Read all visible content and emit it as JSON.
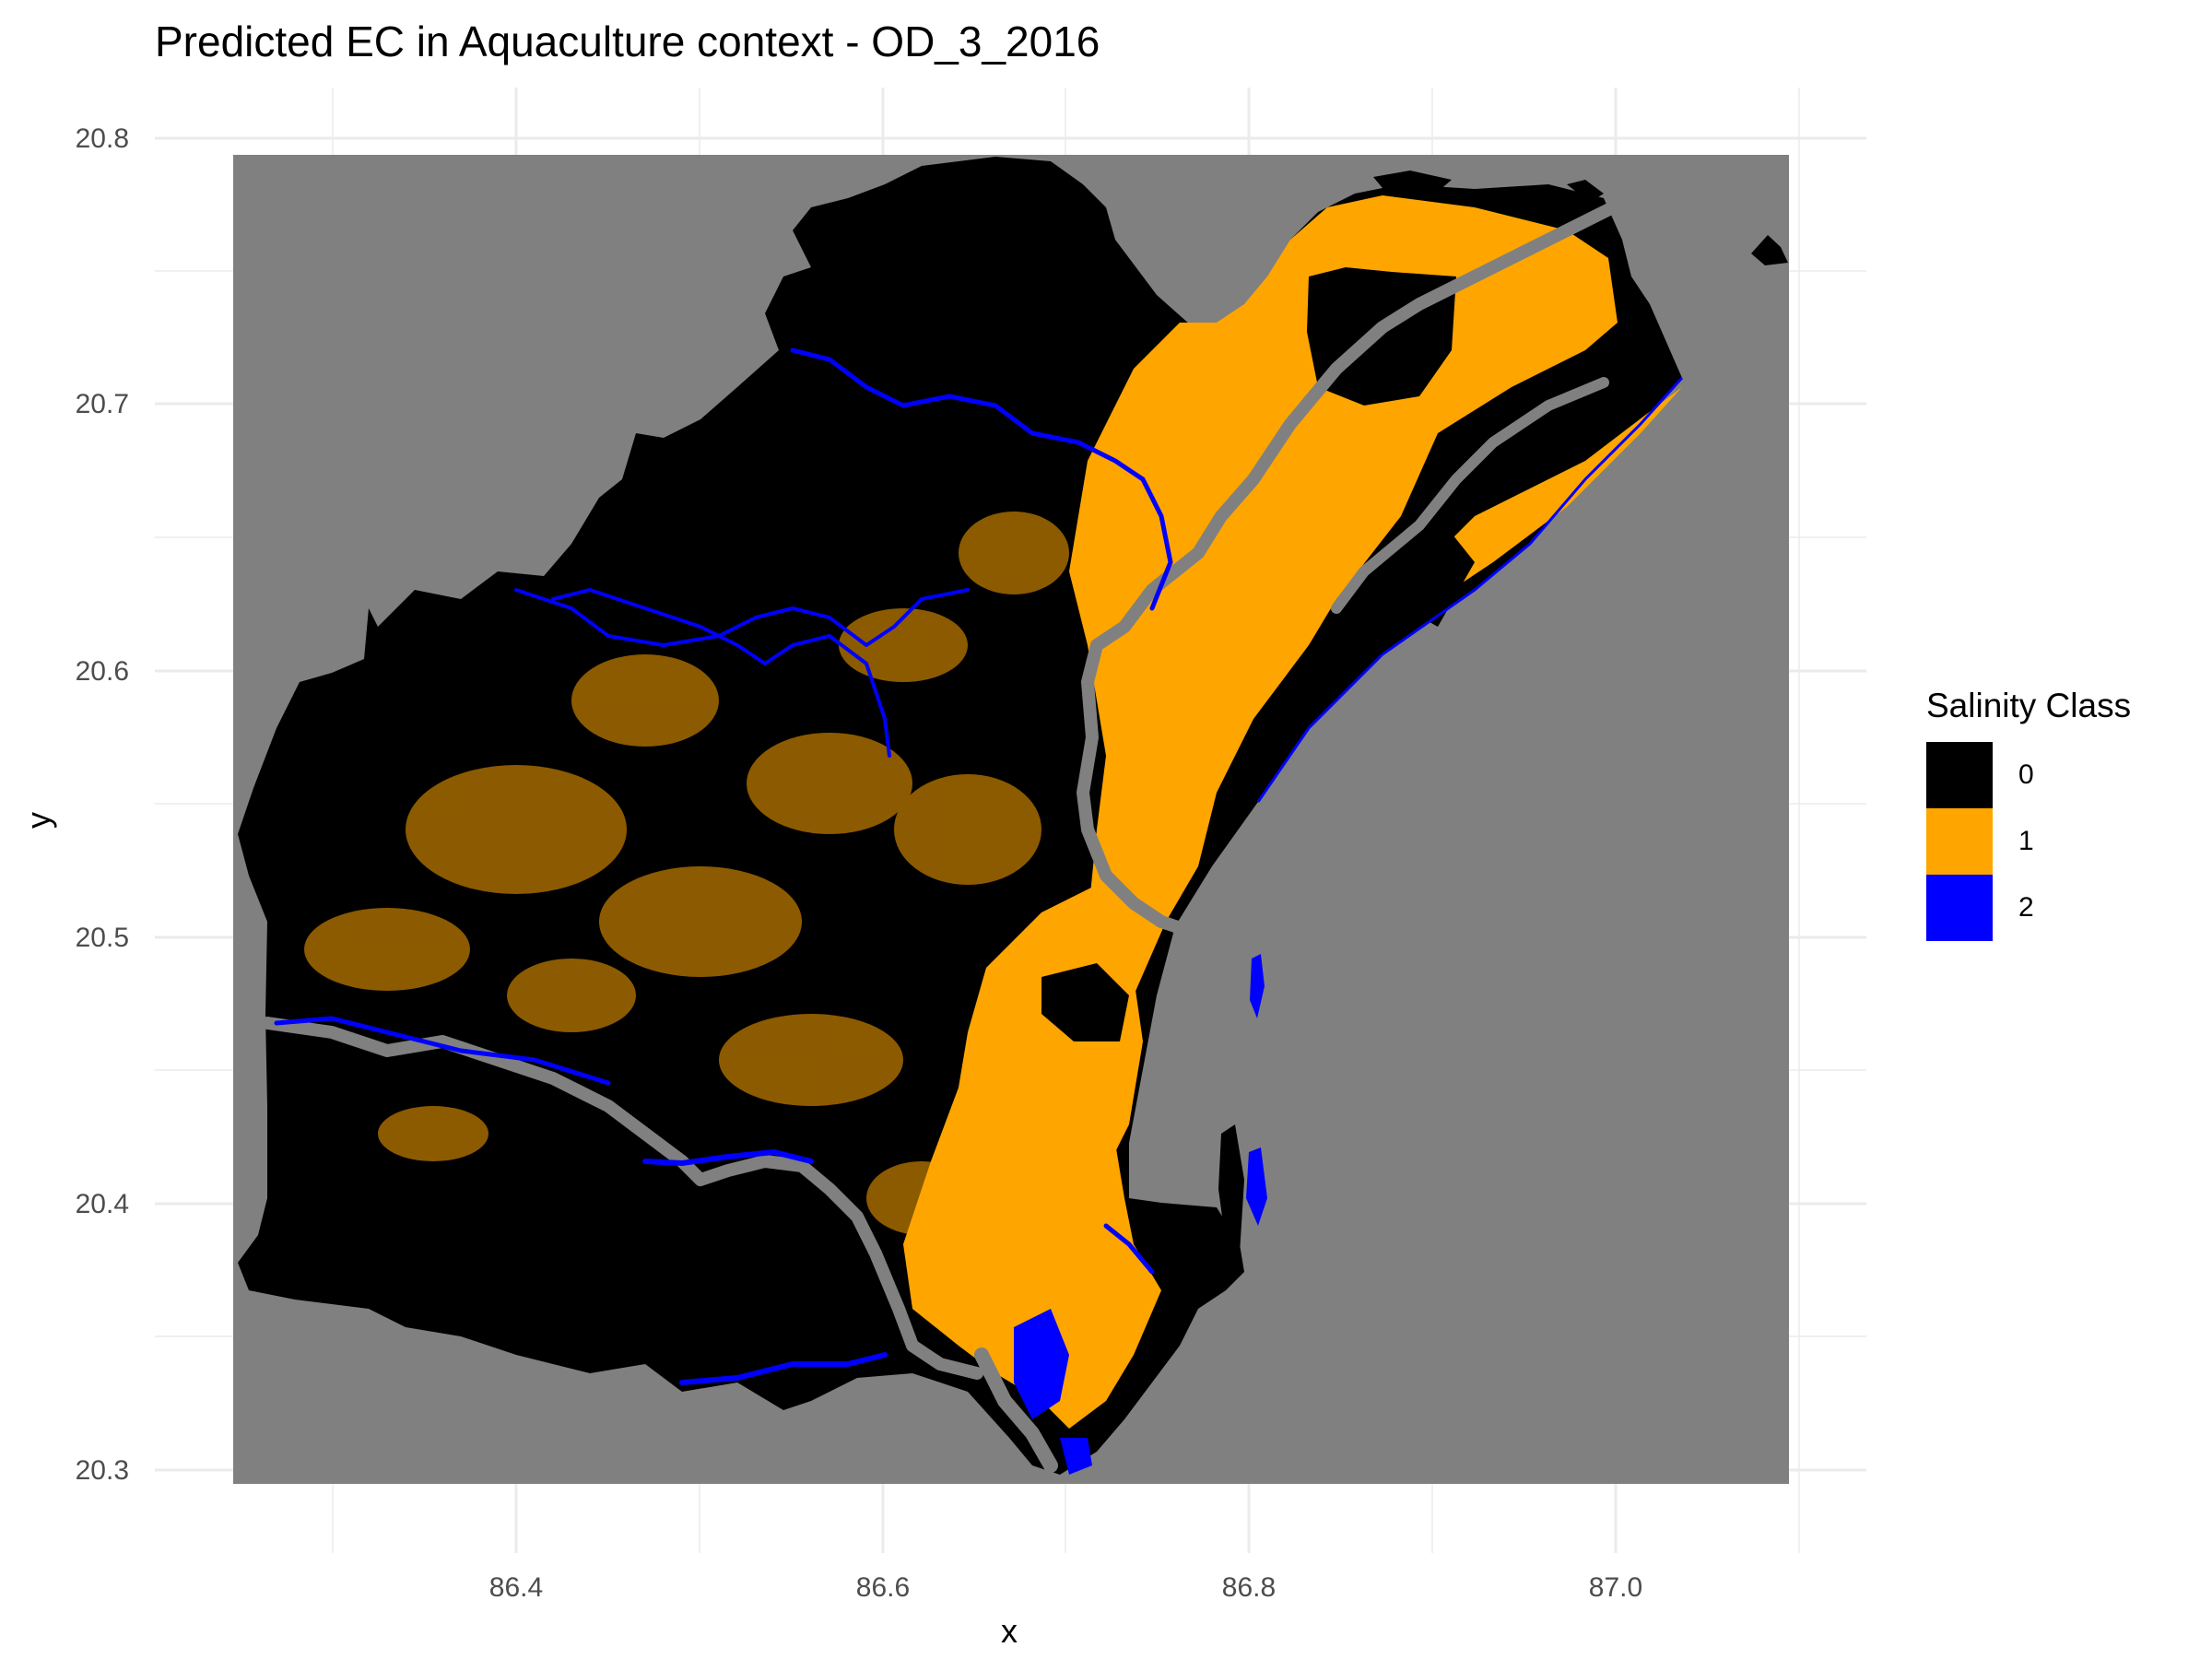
{
  "title": "Predicted EC in Aquaculture context - OD_3_2016",
  "map": {
    "x_label": "x",
    "y_label": "y",
    "x_ticks": [
      "86.4",
      "86.6",
      "86.8",
      "87.0"
    ],
    "y_ticks": [
      "20.3",
      "20.4",
      "20.5",
      "20.6",
      "20.7",
      "20.8"
    ],
    "x_range": [
      86.25,
      87.1
    ],
    "y_range": [
      20.29,
      20.8
    ],
    "grid": true,
    "background_color": "#808080"
  },
  "legend": {
    "title": "Salinity Class",
    "position": "right",
    "items": [
      {
        "label": "0",
        "color": "#000000"
      },
      {
        "label": "1",
        "color": "#FFA500"
      },
      {
        "label": "2",
        "color": "#0000FF"
      }
    ]
  }
}
